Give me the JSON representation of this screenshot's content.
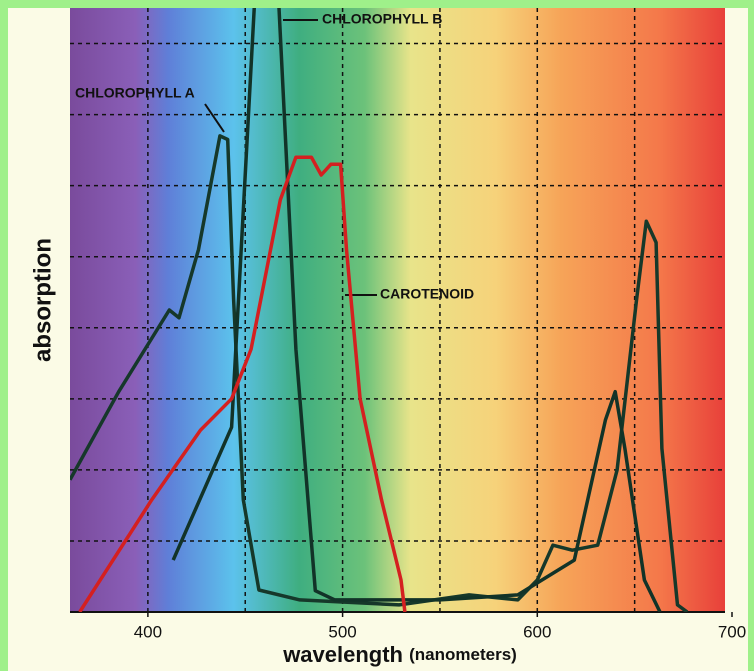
{
  "chart_data": {
    "type": "line",
    "y_label": "absorption",
    "x_label": "wavelength",
    "x_label_unit": "(nanometers)",
    "annotations": [
      "CHLOROPHYLL B",
      "CHLOROPHYLL A",
      "CAROTENOID"
    ],
    "xlim": [
      360,
      700
    ],
    "ylim": [
      0,
      8.5
    ],
    "xticks": [
      400,
      500,
      600,
      700
    ],
    "xgrid": [
      400,
      450,
      500,
      550,
      600,
      650
    ],
    "yticks": [
      1,
      2,
      3,
      4,
      5,
      6,
      7,
      8
    ],
    "grid": true,
    "series": [
      {
        "name": "CHLOROPHYLL A",
        "color": "#16382a",
        "x": [
          360,
          385,
          411,
          416,
          426,
          437,
          441,
          444,
          449,
          457,
          478,
          529,
          565,
          590,
          600,
          608,
          618,
          631,
          641,
          651,
          656,
          661,
          664,
          672,
          677
        ],
        "values": [
          1.86,
          3.1,
          4.25,
          4.14,
          5.1,
          6.7,
          6.65,
          4.4,
          1.58,
          0.31,
          0.17,
          0.1,
          0.24,
          0.17,
          0.45,
          0.94,
          0.87,
          0.94,
          2.0,
          4.4,
          5.5,
          5.2,
          2.3,
          0.1,
          0
        ]
      },
      {
        "name": "CHLOROPHYLL B",
        "color": "#123328",
        "x": [
          413,
          443,
          455,
          467,
          476,
          486,
          496,
          550,
          590,
          619,
          635,
          640,
          645,
          655,
          663
        ],
        "values": [
          0.73,
          2.6,
          8.7,
          8.7,
          3.7,
          0.3,
          0.17,
          0.17,
          0.24,
          0.73,
          2.7,
          3.1,
          2.3,
          0.45,
          0
        ]
      },
      {
        "name": "CAROTENOID",
        "color": "#d42020",
        "x": [
          365,
          402,
          427,
          443,
          453,
          468,
          476,
          484,
          489,
          494,
          499,
          502,
          509,
          520,
          530,
          532
        ],
        "values": [
          0,
          1.58,
          2.56,
          3.0,
          3.7,
          5.8,
          6.4,
          6.4,
          6.15,
          6.3,
          6.3,
          5.1,
          3.0,
          1.58,
          0.45,
          0
        ]
      }
    ]
  }
}
